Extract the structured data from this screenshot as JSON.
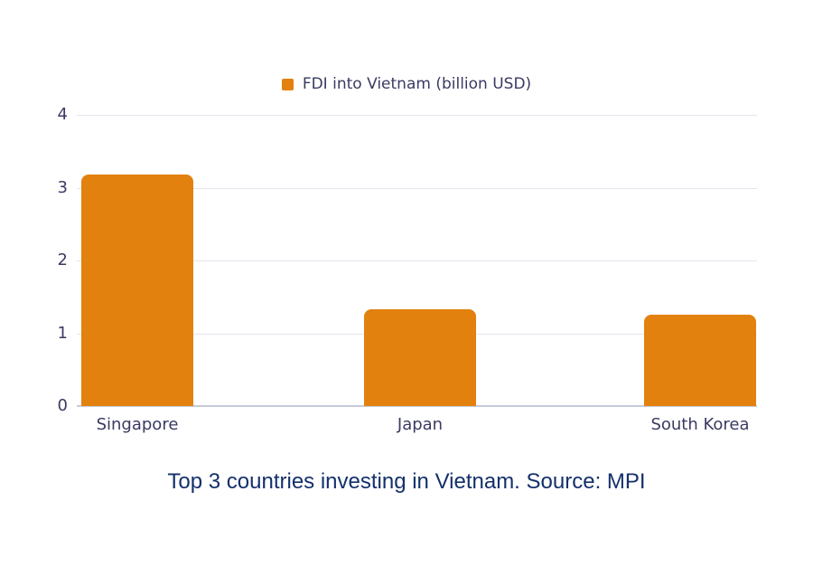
{
  "page": {
    "background": "#ffffff"
  },
  "legend": {
    "label": "FDI into Vietnam (billion USD)"
  },
  "caption": {
    "text": "Top 3 countries investing in Vietnam. Source: MPI"
  },
  "colors": {
    "bar": "#e2810e",
    "axis_label": "#3a3a63",
    "gridline": "#e4e4ee",
    "zero_line": "#c7cad9",
    "caption": "#14306b"
  },
  "chart_data": {
    "type": "bar",
    "title": "Top 3 countries investing in Vietnam. Source: MPI",
    "categories": [
      "Singapore",
      "Japan",
      "South Korea"
    ],
    "series": [
      {
        "name": "FDI into Vietnam (billion USD)",
        "values": [
          3.18,
          1.33,
          1.26
        ]
      }
    ],
    "xlabel": "",
    "ylabel": "",
    "ylim": [
      0,
      4
    ],
    "yticks": [
      0,
      1,
      2,
      3,
      4
    ],
    "grid": true,
    "legend_position": "top",
    "bar_color": "#e2810e"
  }
}
